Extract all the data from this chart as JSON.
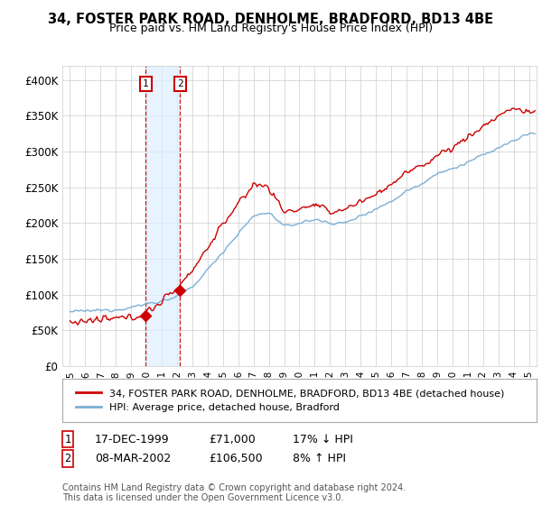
{
  "title": "34, FOSTER PARK ROAD, DENHOLME, BRADFORD, BD13 4BE",
  "subtitle": "Price paid vs. HM Land Registry's House Price Index (HPI)",
  "ylabel_ticks": [
    "£0",
    "£50K",
    "£100K",
    "£150K",
    "£200K",
    "£250K",
    "£300K",
    "£350K",
    "£400K"
  ],
  "ytick_values": [
    0,
    50000,
    100000,
    150000,
    200000,
    250000,
    300000,
    350000,
    400000
  ],
  "ylim": [
    0,
    420000
  ],
  "xlim_start": 1994.5,
  "xlim_end": 2025.5,
  "sale1_x": 1999.96,
  "sale1_y": 71000,
  "sale1_label": "1",
  "sale1_date": "17-DEC-1999",
  "sale1_price": "£71,000",
  "sale1_hpi": "17% ↓ HPI",
  "sale2_x": 2002.19,
  "sale2_y": 106500,
  "sale2_label": "2",
  "sale2_date": "08-MAR-2002",
  "sale2_price": "£106,500",
  "sale2_hpi": "8% ↑ HPI",
  "legend_label_red": "34, FOSTER PARK ROAD, DENHOLME, BRADFORD, BD13 4BE (detached house)",
  "legend_label_blue": "HPI: Average price, detached house, Bradford",
  "footer": "Contains HM Land Registry data © Crown copyright and database right 2024.\nThis data is licensed under the Open Government Licence v3.0.",
  "red_color": "#cc0000",
  "blue_color": "#7bafd4",
  "background_color": "#ffffff",
  "grid_color": "#cccccc",
  "shade_color": "#ddeeff",
  "hpi_waypoints_x": [
    1995,
    1996,
    1997,
    1998,
    1999,
    2000,
    2001,
    2002,
    2003,
    2004,
    2005,
    2006,
    2007,
    2008,
    2009,
    2010,
    2011,
    2012,
    2013,
    2014,
    2015,
    2016,
    2017,
    2018,
    2019,
    2020,
    2021,
    2022,
    2023,
    2024,
    2025
  ],
  "hpi_waypoints_y": [
    76000,
    77000,
    78000,
    79000,
    82000,
    87000,
    91000,
    97000,
    110000,
    135000,
    160000,
    185000,
    210000,
    215000,
    195000,
    200000,
    205000,
    200000,
    200000,
    210000,
    220000,
    230000,
    245000,
    255000,
    270000,
    275000,
    285000,
    295000,
    305000,
    315000,
    325000
  ],
  "red_waypoints_x": [
    1995,
    1996,
    1997,
    1998,
    1999,
    2000,
    2001,
    2002,
    2003,
    2004,
    2005,
    2006,
    2007,
    2008,
    2009,
    2010,
    2011,
    2012,
    2013,
    2014,
    2015,
    2016,
    2017,
    2018,
    2019,
    2020,
    2021,
    2022,
    2023,
    2024,
    2025
  ],
  "red_waypoints_y": [
    62000,
    63000,
    64000,
    66000,
    68000,
    75000,
    90000,
    110000,
    135000,
    165000,
    200000,
    225000,
    255000,
    250000,
    215000,
    220000,
    225000,
    215000,
    220000,
    230000,
    240000,
    255000,
    270000,
    280000,
    295000,
    305000,
    320000,
    335000,
    350000,
    360000,
    355000
  ]
}
